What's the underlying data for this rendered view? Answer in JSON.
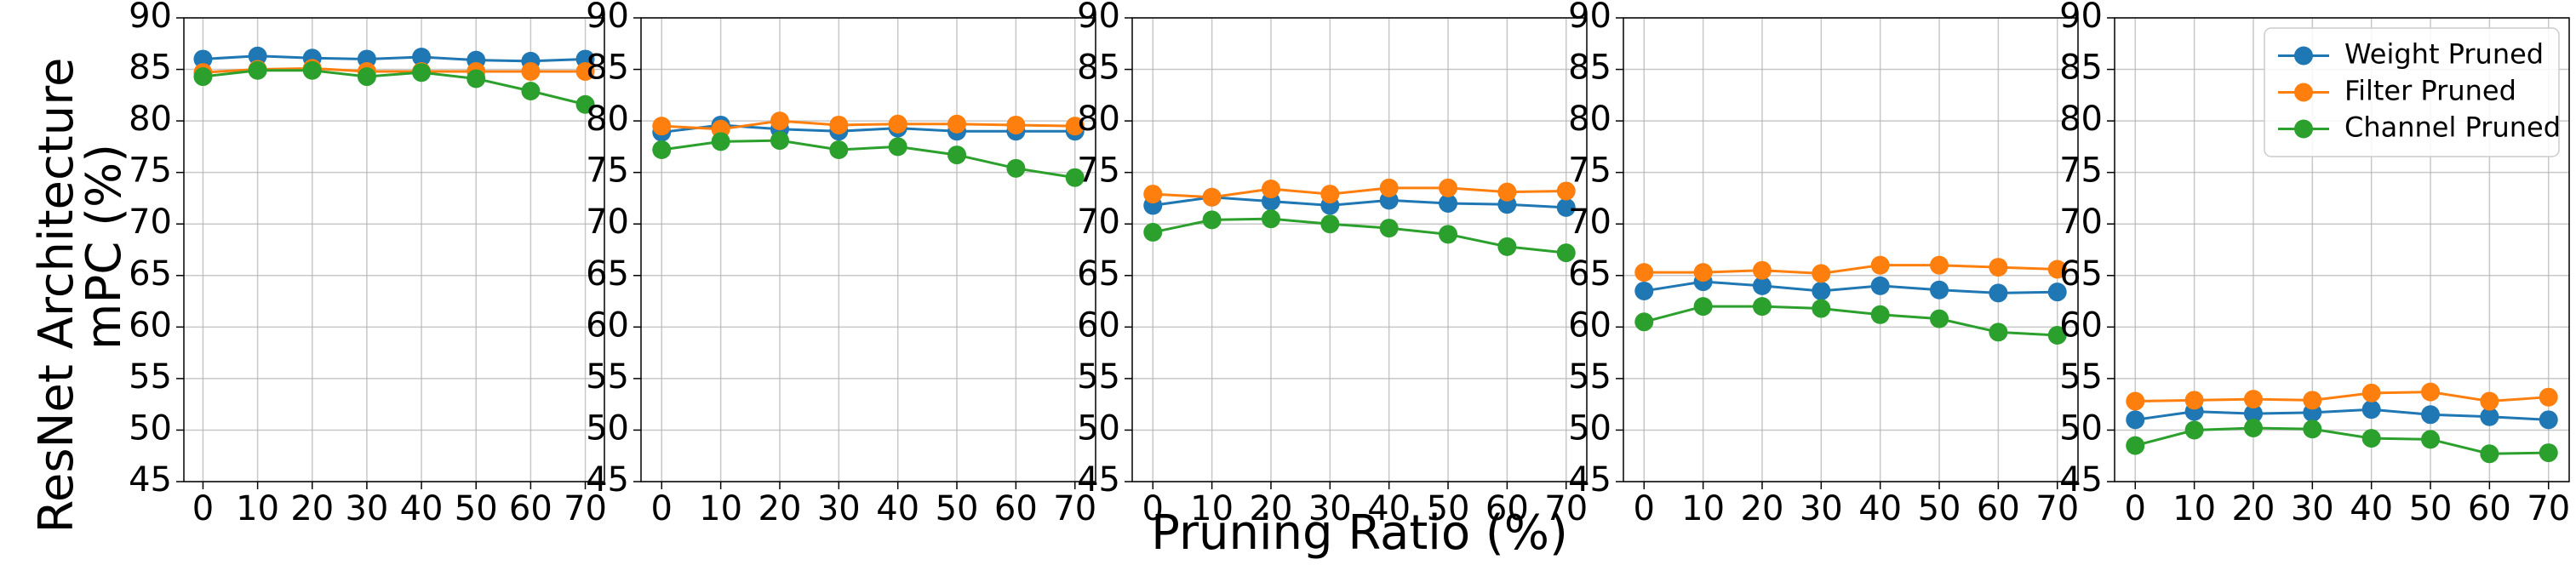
{
  "row_label": "ResNet Architecture",
  "chart_data": [
    {
      "type": "line",
      "ylabel": "mPC (%)",
      "x": [
        0,
        10,
        20,
        30,
        40,
        50,
        60,
        70
      ],
      "xlim": [
        -3.5,
        73.5
      ],
      "xticks": [
        0,
        10,
        20,
        30,
        40,
        50,
        60,
        70
      ],
      "ylim": [
        45,
        90
      ],
      "yticks": [
        45,
        50,
        55,
        60,
        65,
        70,
        75,
        80,
        85,
        90
      ],
      "grid": true,
      "series": [
        {
          "color": "#1f77b4",
          "values": [
            86,
            86.3,
            86.1,
            86,
            86.2,
            85.9,
            85.8,
            86
          ]
        },
        {
          "color": "#ff7f0e",
          "values": [
            84.7,
            85,
            85.1,
            84.8,
            84.8,
            84.8,
            84.8,
            84.8
          ]
        },
        {
          "color": "#2ca02c",
          "values": [
            84.3,
            84.9,
            84.9,
            84.3,
            84.7,
            84.1,
            82.9,
            81.6
          ]
        }
      ]
    },
    {
      "type": "line",
      "x": [
        0,
        10,
        20,
        30,
        40,
        50,
        60,
        70
      ],
      "xlim": [
        -3.5,
        73.5
      ],
      "xticks": [
        0,
        10,
        20,
        30,
        40,
        50,
        60,
        70
      ],
      "ylim": [
        45,
        90
      ],
      "yticks": [
        45,
        50,
        55,
        60,
        65,
        70,
        75,
        80,
        85,
        90
      ],
      "grid": true,
      "series": [
        {
          "color": "#1f77b4",
          "values": [
            78.9,
            79.6,
            79.2,
            79,
            79.3,
            79,
            79,
            79
          ]
        },
        {
          "color": "#ff7f0e",
          "values": [
            79.5,
            79.2,
            80,
            79.6,
            79.7,
            79.7,
            79.6,
            79.5
          ]
        },
        {
          "color": "#2ca02c",
          "values": [
            77.2,
            78,
            78.1,
            77.2,
            77.5,
            76.7,
            75.4,
            74.5
          ]
        }
      ]
    },
    {
      "type": "line",
      "xlabel": "Pruning Ratio (%)",
      "x": [
        0,
        10,
        20,
        30,
        40,
        50,
        60,
        70
      ],
      "xlim": [
        -3.5,
        73.5
      ],
      "xticks": [
        0,
        10,
        20,
        30,
        40,
        50,
        60,
        70
      ],
      "ylim": [
        45,
        90
      ],
      "yticks": [
        45,
        50,
        55,
        60,
        65,
        70,
        75,
        80,
        85,
        90
      ],
      "grid": true,
      "series": [
        {
          "color": "#1f77b4",
          "values": [
            71.8,
            72.6,
            72.2,
            71.8,
            72.3,
            72,
            71.9,
            71.6
          ]
        },
        {
          "color": "#ff7f0e",
          "values": [
            72.9,
            72.6,
            73.4,
            72.9,
            73.5,
            73.5,
            73.1,
            73.2
          ]
        },
        {
          "color": "#2ca02c",
          "values": [
            69.2,
            70.4,
            70.5,
            70,
            69.6,
            69,
            67.8,
            67.2
          ]
        }
      ]
    },
    {
      "type": "line",
      "x": [
        0,
        10,
        20,
        30,
        40,
        50,
        60,
        70
      ],
      "xlim": [
        -3.5,
        73.5
      ],
      "xticks": [
        0,
        10,
        20,
        30,
        40,
        50,
        60,
        70
      ],
      "ylim": [
        45,
        90
      ],
      "yticks": [
        45,
        50,
        55,
        60,
        65,
        70,
        75,
        80,
        85,
        90
      ],
      "grid": true,
      "series": [
        {
          "color": "#1f77b4",
          "values": [
            63.5,
            64.4,
            64,
            63.5,
            64,
            63.6,
            63.3,
            63.4
          ]
        },
        {
          "color": "#ff7f0e",
          "values": [
            65.3,
            65.3,
            65.5,
            65.2,
            66,
            66,
            65.8,
            65.6
          ]
        },
        {
          "color": "#2ca02c",
          "values": [
            60.5,
            62,
            62,
            61.8,
            61.2,
            60.8,
            59.5,
            59.2
          ]
        }
      ]
    },
    {
      "type": "line",
      "legend": "upper right",
      "x": [
        0,
        10,
        20,
        30,
        40,
        50,
        60,
        70
      ],
      "xlim": [
        -3.5,
        73.5
      ],
      "xticks": [
        0,
        10,
        20,
        30,
        40,
        50,
        60,
        70
      ],
      "ylim": [
        45,
        90
      ],
      "yticks": [
        45,
        50,
        55,
        60,
        65,
        70,
        75,
        80,
        85,
        90
      ],
      "grid": true,
      "series": [
        {
          "name": "Weight Pruned",
          "color": "#1f77b4",
          "values": [
            51,
            51.8,
            51.6,
            51.7,
            52,
            51.5,
            51.3,
            51
          ]
        },
        {
          "name": "Filter Pruned",
          "color": "#ff7f0e",
          "values": [
            52.8,
            52.9,
            53,
            52.9,
            53.6,
            53.7,
            52.8,
            53.2
          ]
        },
        {
          "name": "Channel Pruned",
          "color": "#2ca02c",
          "values": [
            48.5,
            50,
            50.2,
            50.1,
            49.2,
            49.1,
            47.7,
            47.8
          ]
        }
      ]
    }
  ]
}
